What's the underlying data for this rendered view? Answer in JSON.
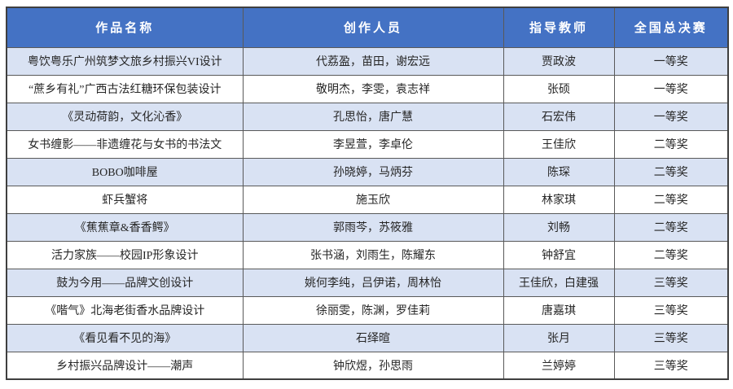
{
  "colors": {
    "header_bg": "#4472c4",
    "header_text": "#ffffff",
    "stripe_row_bg": "#d9e2f3",
    "border": "#595959",
    "text": "#262626"
  },
  "table": {
    "columns": [
      {
        "label": "作品名称"
      },
      {
        "label": "创作人员"
      },
      {
        "label": "指导教师"
      },
      {
        "label": "全国总决赛"
      }
    ],
    "rows": [
      {
        "work": "粤饮粤乐广州筑梦文旅乡村振兴VI设计",
        "creators": "代荔盈，苗田，谢宏远",
        "teacher": "贾政波",
        "award": "一等奖"
      },
      {
        "work": "“蔗乡有礼”广西古法红糖环保包装设计",
        "creators": "敬明杰，李雯，袁志祥",
        "teacher": "张硕",
        "award": "一等奖"
      },
      {
        "work": "《灵动荷韵，文化沁香》",
        "creators": "孔思怡，唐广慧",
        "teacher": "石宏伟",
        "award": "一等奖"
      },
      {
        "work": "女书缠影——非遗缠花与女书的书法文",
        "creators": "李昱萱，李卓伦",
        "teacher": "王佳欣",
        "award": "二等奖"
      },
      {
        "work": "BOBO咖啡屋",
        "creators": "孙晓婷，马炳芬",
        "teacher": "陈琛",
        "award": "二等奖"
      },
      {
        "work": "虾兵蟹将",
        "creators": "施玉欣",
        "teacher": "林家琪",
        "award": "二等奖"
      },
      {
        "work": "《蕉蕉章&香香鳄》",
        "creators": "郭雨芩，苏筱雅",
        "teacher": "刘畅",
        "award": "二等奖"
      },
      {
        "work": "活力家族——校园IP形象设计",
        "creators": "张书涵，刘雨生，陈耀东",
        "teacher": "钟舒宜",
        "award": "二等奖"
      },
      {
        "work": "鼓为今用——品牌文创设计",
        "creators": "姚何李纯，吕伊诺，周林怡",
        "teacher": "王佳欣，白建强",
        "award": "三等奖"
      },
      {
        "work": "《喈气》北海老街香水品牌设计",
        "creators": "徐丽雯，陈渊，罗佳莉",
        "teacher": "唐嘉琪",
        "award": "三等奖"
      },
      {
        "work": "《看见看不见的海》",
        "creators": "石绎暄",
        "teacher": "张月",
        "award": "三等奖"
      },
      {
        "work": "乡村振兴品牌设计——潮声",
        "creators": "钟欣煜，孙思雨",
        "teacher": "兰婷婷",
        "award": "三等奖"
      }
    ]
  }
}
